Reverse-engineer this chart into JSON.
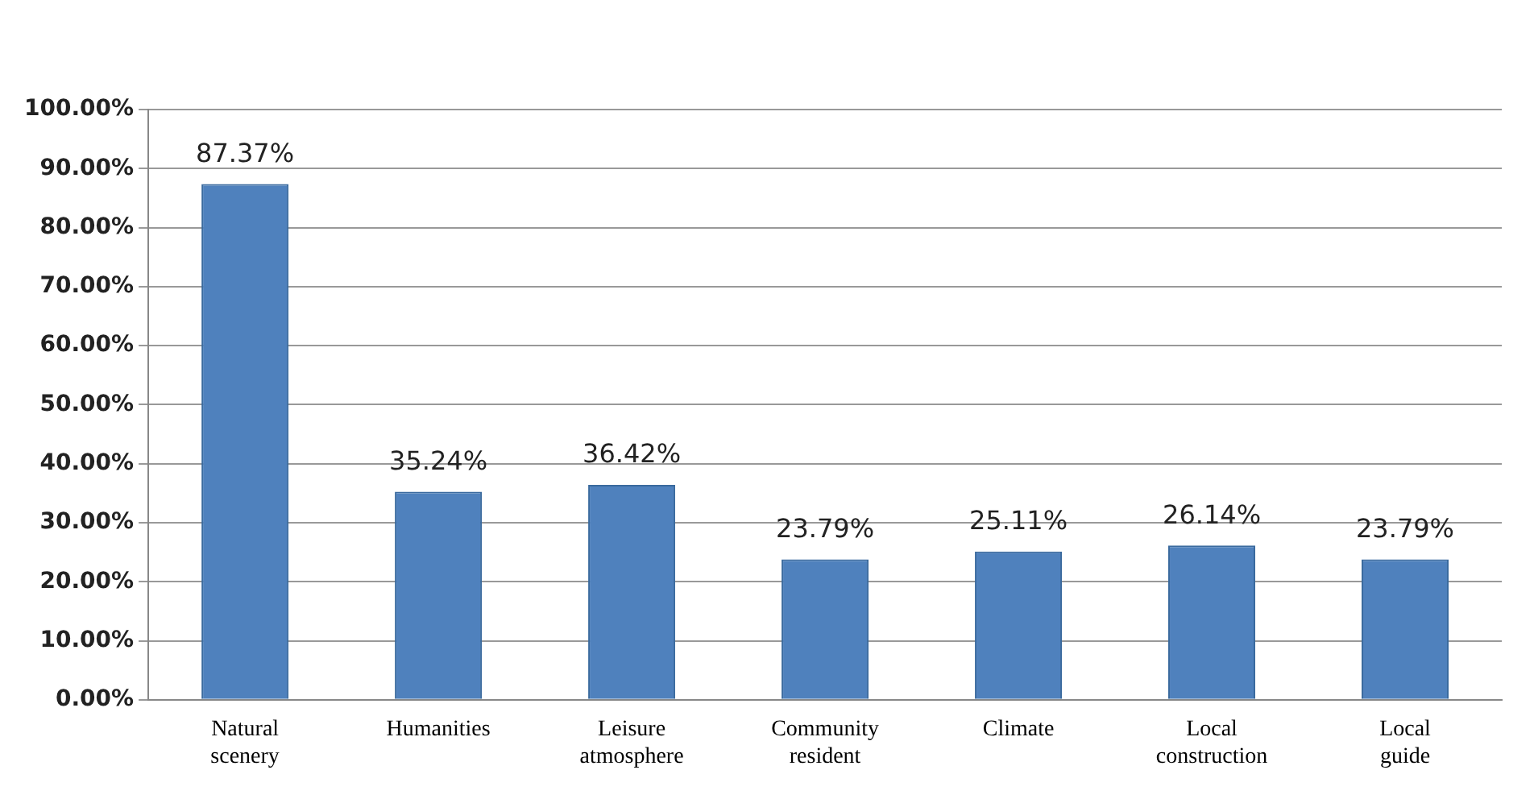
{
  "chart_data": {
    "type": "bar",
    "categories": [
      "Natural scenery",
      "Humanities",
      "Leisure atmosphere",
      "Community resident",
      "Climate",
      "Local construction",
      "Local guide"
    ],
    "values": [
      87.37,
      35.24,
      36.42,
      23.79,
      25.11,
      26.14,
      23.79
    ],
    "value_labels": [
      "87.37%",
      "35.24%",
      "36.42%",
      "23.79%",
      "25.11%",
      "26.14%",
      "23.79%"
    ],
    "color": "#4f81bd",
    "ylim": [
      0,
      100
    ],
    "yticks": [
      {
        "value": 0,
        "label": "0.00%"
      },
      {
        "value": 10,
        "label": "10.00%"
      },
      {
        "value": 20,
        "label": "20.00%"
      },
      {
        "value": 30,
        "label": "30.00%"
      },
      {
        "value": 40,
        "label": "40.00%"
      },
      {
        "value": 50,
        "label": "50.00%"
      },
      {
        "value": 60,
        "label": "60.00%"
      },
      {
        "value": 70,
        "label": "70.00%"
      },
      {
        "value": 80,
        "label": "80.00%"
      },
      {
        "value": 90,
        "label": "90.00%"
      },
      {
        "value": 100,
        "label": "100.00%"
      }
    ],
    "grid": "y",
    "legend": false
  }
}
